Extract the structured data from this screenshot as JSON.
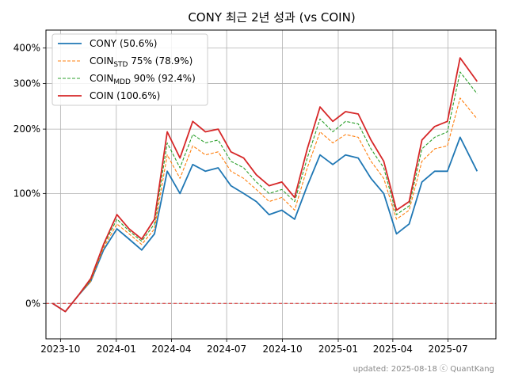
{
  "chart_data": {
    "type": "line",
    "title": "CONY 최근 2년 성과 (vs COIN)",
    "footer": "updated: 2025-08-18 ⓒ QuantKang",
    "x_ticks": [
      "2023-10",
      "2024-01",
      "2024-04",
      "2024-07",
      "2024-10",
      "2025-01",
      "2025-04",
      "2025-07"
    ],
    "y_ticks": [
      {
        "value": 0,
        "label": "0%"
      },
      {
        "value": 100,
        "label": "100%"
      },
      {
        "value": 200,
        "label": "200%"
      },
      {
        "value": 300,
        "label": "300%"
      },
      {
        "value": 400,
        "label": "400%"
      }
    ],
    "y_scale": "log(1+r)",
    "ylim": [
      -20,
      460
    ],
    "xlim": [
      "2023-09-07",
      "2025-09-18"
    ],
    "grid": true,
    "legend_position": "top-left",
    "reference_line": {
      "value": 0,
      "color": "#d62728",
      "style": "dashed"
    },
    "series": [
      {
        "name": "CONY (50.6%)",
        "legend_name": "CONY",
        "legend_sub": "",
        "legend_suffix": " (50.6%)",
        "color": "#1f77b4",
        "style": "solid",
        "x": [
          "2023-09-18",
          "2023-10-09",
          "2023-10-30",
          "2023-11-20",
          "2023-12-11",
          "2024-01-02",
          "2024-01-22",
          "2024-02-12",
          "2024-03-04",
          "2024-03-25",
          "2024-04-15",
          "2024-05-06",
          "2024-05-27",
          "2024-06-17",
          "2024-07-08",
          "2024-07-29",
          "2024-08-19",
          "2024-09-09",
          "2024-09-30",
          "2024-10-21",
          "2024-11-11",
          "2024-12-02",
          "2024-12-23",
          "2025-01-13",
          "2025-02-03",
          "2025-02-24",
          "2025-03-17",
          "2025-04-07",
          "2025-04-28",
          "2025-05-19",
          "2025-06-09",
          "2025-06-30",
          "2025-07-21",
          "2025-08-18"
        ],
        "values": [
          0,
          -5,
          5,
          15,
          40,
          60,
          50,
          40,
          55,
          130,
          100,
          140,
          130,
          135,
          110,
          100,
          90,
          75,
          80,
          70,
          110,
          155,
          140,
          155,
          150,
          120,
          100,
          55,
          65,
          115,
          130,
          130,
          185,
          130
        ]
      },
      {
        "name": "COIN STD 75% (78.9%)",
        "legend_name": "COIN",
        "legend_sub": "STD",
        "legend_suffix": " 75% (78.9%)",
        "color": "#ff7f0e",
        "style": "dashed",
        "x": [
          "2023-09-18",
          "2023-10-09",
          "2023-10-30",
          "2023-11-20",
          "2023-12-11",
          "2024-01-02",
          "2024-01-22",
          "2024-02-12",
          "2024-03-04",
          "2024-03-25",
          "2024-04-15",
          "2024-05-06",
          "2024-05-27",
          "2024-06-17",
          "2024-07-08",
          "2024-07-29",
          "2024-08-19",
          "2024-09-09",
          "2024-09-30",
          "2024-10-21",
          "2024-11-11",
          "2024-12-02",
          "2024-12-23",
          "2025-01-13",
          "2025-02-03",
          "2025-02-24",
          "2025-03-17",
          "2025-04-07",
          "2025-04-28",
          "2025-05-19",
          "2025-06-09",
          "2025-06-30",
          "2025-07-21",
          "2025-08-18"
        ],
        "values": [
          0,
          -5,
          5,
          15,
          42,
          65,
          55,
          45,
          60,
          155,
          120,
          170,
          155,
          160,
          130,
          120,
          105,
          90,
          95,
          80,
          135,
          195,
          175,
          190,
          185,
          145,
          120,
          70,
          80,
          145,
          165,
          170,
          265,
          220
        ]
      },
      {
        "name": "COIN MDD 90% (92.4%)",
        "legend_name": "COIN",
        "legend_sub": "MDD",
        "legend_suffix": " 90% (92.4%)",
        "color": "#2ca02c",
        "style": "dashed",
        "x": [
          "2023-09-18",
          "2023-10-09",
          "2023-10-30",
          "2023-11-20",
          "2023-12-11",
          "2024-01-02",
          "2024-01-22",
          "2024-02-12",
          "2024-03-04",
          "2024-03-25",
          "2024-04-15",
          "2024-05-06",
          "2024-05-27",
          "2024-06-17",
          "2024-07-08",
          "2024-07-29",
          "2024-08-19",
          "2024-09-09",
          "2024-09-30",
          "2024-10-21",
          "2024-11-11",
          "2024-12-02",
          "2024-12-23",
          "2025-01-13",
          "2025-02-03",
          "2025-02-24",
          "2025-03-17",
          "2025-04-07",
          "2025-04-28",
          "2025-05-19",
          "2025-06-09",
          "2025-06-30",
          "2025-07-21",
          "2025-08-18"
        ],
        "values": [
          0,
          -5,
          5,
          16,
          44,
          70,
          58,
          48,
          65,
          175,
          135,
          190,
          175,
          180,
          145,
          135,
          115,
          100,
          105,
          90,
          150,
          220,
          195,
          215,
          210,
          165,
          135,
          75,
          85,
          165,
          185,
          195,
          330,
          275
        ]
      },
      {
        "name": "COIN (100.6%)",
        "legend_name": "COIN",
        "legend_sub": "",
        "legend_suffix": " (100.6%)",
        "color": "#d62728",
        "style": "solid",
        "x": [
          "2023-09-18",
          "2023-10-09",
          "2023-10-30",
          "2023-11-20",
          "2023-12-11",
          "2024-01-02",
          "2024-01-22",
          "2024-02-12",
          "2024-03-04",
          "2024-03-25",
          "2024-04-15",
          "2024-05-06",
          "2024-05-27",
          "2024-06-17",
          "2024-07-08",
          "2024-07-29",
          "2024-08-19",
          "2024-09-09",
          "2024-09-30",
          "2024-10-21",
          "2024-11-11",
          "2024-12-02",
          "2024-12-23",
          "2025-01-13",
          "2025-02-03",
          "2025-02-24",
          "2025-03-17",
          "2025-04-07",
          "2025-04-28",
          "2025-05-19",
          "2025-06-09",
          "2025-06-30",
          "2025-07-21",
          "2025-08-18"
        ],
        "values": [
          0,
          -5,
          5,
          17,
          45,
          75,
          60,
          50,
          70,
          195,
          150,
          215,
          195,
          200,
          160,
          150,
          125,
          110,
          115,
          95,
          165,
          245,
          215,
          235,
          230,
          180,
          145,
          80,
          90,
          180,
          205,
          215,
          370,
          305
        ]
      }
    ]
  }
}
